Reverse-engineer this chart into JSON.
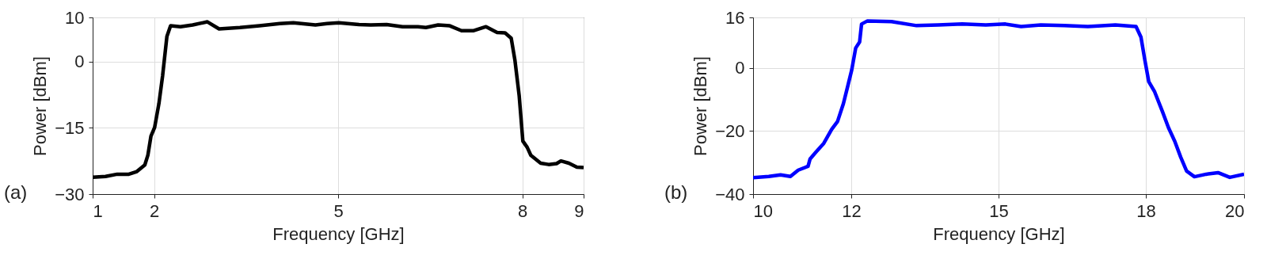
{
  "chart_data": [
    {
      "type": "line",
      "xlabel": "Frequency [GHz]",
      "ylabel": "Power [dBm]",
      "annotations": [
        "(a)"
      ],
      "xlim": [
        1,
        9
      ],
      "xticks": [
        1,
        2,
        5,
        8,
        9
      ],
      "ylim": [
        -30,
        10
      ],
      "yticks": [
        -30,
        -15,
        0,
        10
      ],
      "grid": true,
      "line_style": "solid",
      "series": [
        {
          "color": "#000000",
          "x": [
            1,
            1.21,
            1.4,
            1.59,
            1.72,
            1.85,
            1.9,
            1.95,
            2.01,
            2.08,
            2.14,
            2.21,
            2.27,
            2.43,
            2.63,
            2.87,
            3.06,
            3.4,
            3.72,
            4.05,
            4.27,
            4.63,
            4.82,
            5.01,
            5.34,
            5.53,
            5.79,
            6.05,
            6.3,
            6.43,
            6.63,
            6.82,
            7.01,
            7.21,
            7.41,
            7.59,
            7.72,
            7.82,
            7.88,
            7.95,
            8.01,
            8.08,
            8.14,
            8.3,
            8.43,
            8.56,
            8.63,
            8.76,
            8.89,
            9
          ],
          "values": [
            -26.2,
            -26.0,
            -25.5,
            -25.5,
            -24.9,
            -23.4,
            -21.2,
            -16.9,
            -14.9,
            -9.5,
            -3.2,
            5.7,
            8.1,
            7.9,
            8.3,
            9.0,
            7.4,
            7.7,
            8.1,
            8.6,
            8.8,
            8.3,
            8.6,
            8.8,
            8.4,
            8.3,
            8.4,
            7.9,
            7.9,
            7.7,
            8.3,
            8.1,
            7.0,
            7.0,
            7.9,
            6.6,
            6.5,
            5.3,
            0.4,
            -7.7,
            -18.0,
            -19.4,
            -21.2,
            -23.0,
            -23.3,
            -23.1,
            -22.5,
            -23.0,
            -23.9,
            -24.0
          ]
        }
      ]
    },
    {
      "type": "line",
      "xlabel": "Frequency [GHz]",
      "ylabel": "Power [dBm]",
      "annotations": [
        "(b)"
      ],
      "xlim": [
        10,
        20
      ],
      "xticks": [
        10,
        12,
        15,
        18,
        20
      ],
      "ylim": [
        -40,
        16
      ],
      "yticks": [
        -40,
        -20,
        0,
        16
      ],
      "grid": true,
      "line_style": "solid",
      "series": [
        {
          "color": "#0000ff",
          "x": [
            10,
            10.32,
            10.56,
            10.76,
            10.92,
            11.12,
            11.16,
            11.28,
            11.44,
            11.6,
            11.72,
            11.84,
            11.93,
            12.01,
            12.09,
            12.17,
            12.21,
            12.33,
            12.82,
            13.33,
            13.77,
            14.26,
            14.74,
            15.14,
            15.46,
            15.86,
            16.34,
            16.82,
            17.38,
            17.8,
            17.9,
            17.98,
            18.06,
            18.18,
            18.34,
            18.46,
            18.59,
            18.71,
            18.83,
            18.99,
            19.23,
            19.47,
            19.71,
            20
          ],
          "values": [
            -34.8,
            -34.4,
            -33.9,
            -34.4,
            -32.4,
            -31.2,
            -28.9,
            -26.7,
            -23.9,
            -19.5,
            -17.0,
            -11.3,
            -5.7,
            -0.6,
            6.3,
            8.2,
            13.9,
            14.9,
            14.7,
            13.4,
            13.6,
            13.9,
            13.6,
            13.9,
            13.1,
            13.6,
            13.4,
            13.1,
            13.6,
            13.1,
            9.8,
            2.5,
            -4.4,
            -7.6,
            -13.9,
            -18.9,
            -23.3,
            -28.3,
            -32.7,
            -34.5,
            -33.7,
            -33.2,
            -34.7,
            -33.7
          ]
        }
      ]
    }
  ]
}
